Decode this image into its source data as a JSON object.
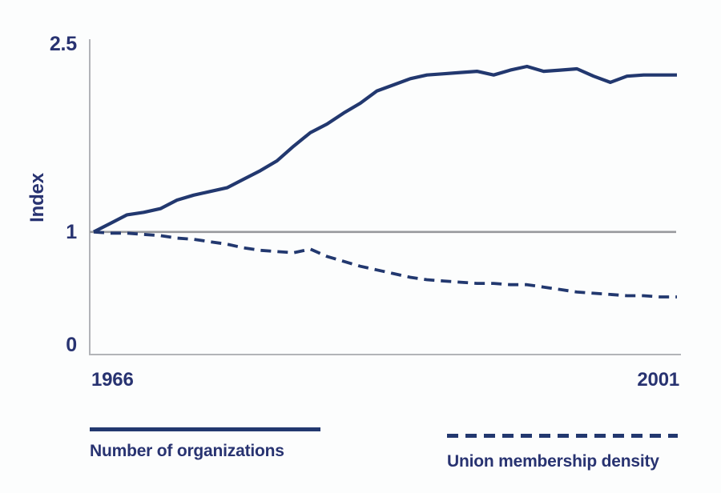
{
  "figure": {
    "y_axis_label": "Index",
    "y_ticks": [
      "2.5",
      "1",
      "0"
    ],
    "x_tick_left": "1966",
    "x_tick_right": "2001",
    "colors": {
      "line_navy": "#22386f",
      "text_navy": "#283371",
      "axis_gray": "#b2b4b8",
      "baseline_gray": "#97999d",
      "background": "#fcfdfd"
    }
  },
  "legend": {
    "solid_label": "Number of organizations",
    "dashed_label": "Union membership density"
  },
  "chart_data": {
    "type": "line",
    "title": "",
    "xlabel": "",
    "ylabel": "Index",
    "x_range": [
      1966,
      2001
    ],
    "ylim": [
      0,
      2.5
    ],
    "y_tick_values": [
      0,
      1,
      2.5
    ],
    "x_tick_labels": [
      "1966",
      "2001"
    ],
    "baseline": 1,
    "grid": false,
    "legend_position": "bottom",
    "x": [
      1966,
      1967,
      1968,
      1969,
      1970,
      1971,
      1972,
      1973,
      1974,
      1975,
      1976,
      1977,
      1978,
      1979,
      1980,
      1981,
      1982,
      1983,
      1984,
      1985,
      1986,
      1987,
      1988,
      1989,
      1990,
      1991,
      1992,
      1993,
      1994,
      1995,
      1996,
      1997,
      1998,
      1999,
      2000,
      2001
    ],
    "series": [
      {
        "name": "Number of organizations",
        "style": "solid",
        "values": [
          1.0,
          1.07,
          1.14,
          1.16,
          1.19,
          1.26,
          1.3,
          1.33,
          1.36,
          1.43,
          1.5,
          1.58,
          1.7,
          1.81,
          1.88,
          1.97,
          2.05,
          2.15,
          2.2,
          2.25,
          2.28,
          2.29,
          2.3,
          2.31,
          2.28,
          2.32,
          2.35,
          2.31,
          2.32,
          2.33,
          2.27,
          2.22,
          2.27,
          2.28,
          2.28,
          2.28
        ]
      },
      {
        "name": "Union membership density",
        "style": "dashed",
        "values": [
          1.0,
          0.99,
          0.99,
          0.98,
          0.97,
          0.95,
          0.94,
          0.92,
          0.9,
          0.87,
          0.85,
          0.84,
          0.83,
          0.86,
          0.8,
          0.76,
          0.72,
          0.69,
          0.66,
          0.63,
          0.61,
          0.6,
          0.59,
          0.58,
          0.58,
          0.57,
          0.57,
          0.55,
          0.53,
          0.51,
          0.5,
          0.49,
          0.48,
          0.48,
          0.47,
          0.47
        ]
      }
    ]
  }
}
